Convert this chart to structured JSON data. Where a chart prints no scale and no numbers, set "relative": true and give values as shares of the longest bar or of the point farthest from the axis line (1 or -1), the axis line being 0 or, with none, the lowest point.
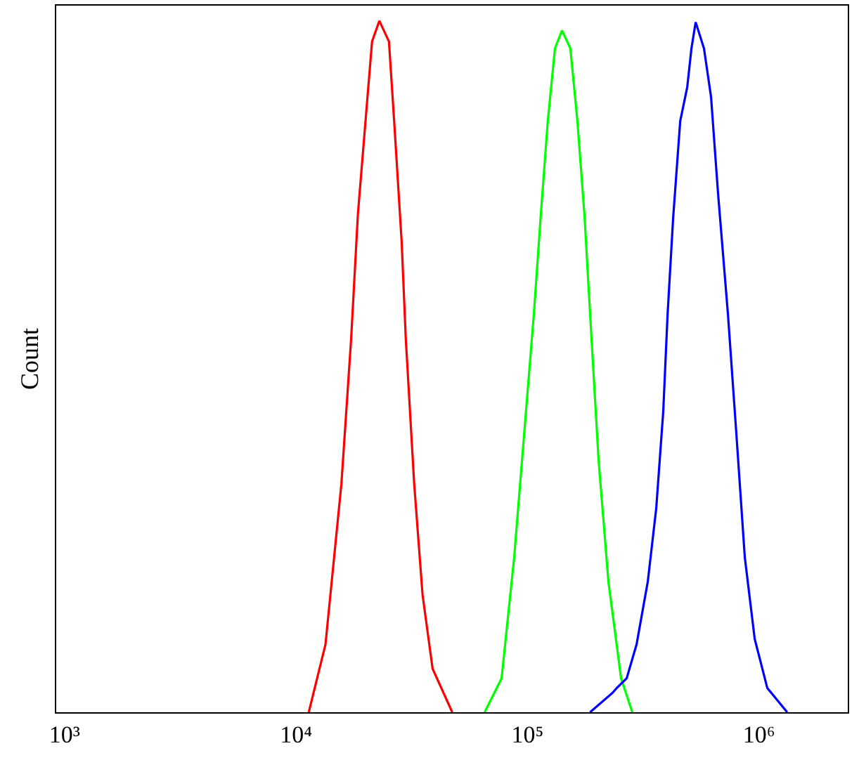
{
  "chart_data": {
    "type": "line",
    "ylabel": "Count",
    "relative": true,
    "tick_labels": "x",
    "marker": "none",
    "line_style": "solid",
    "xlim": [
      920,
      2420000
    ],
    "log": "x",
    "xticks": [
      {
        "value": 1000,
        "label": "10³"
      },
      {
        "value": 10000,
        "label": "10⁴"
      },
      {
        "value": 100000,
        "label": "10⁵"
      },
      {
        "value": 1000000,
        "label": "10⁶"
      }
    ],
    "series": [
      {
        "color": "#ff0000",
        "x": [
          11350,
          13400,
          15700,
          17300,
          18500,
          19900,
          21300,
          22900,
          25200,
          26600,
          28600,
          29800,
          32400,
          35200,
          38900,
          47300
        ],
        "values": [
          0,
          0.098,
          0.33,
          0.54,
          0.72,
          0.85,
          0.97,
          1.0,
          0.97,
          0.85,
          0.68,
          0.54,
          0.33,
          0.17,
          0.063,
          0
        ]
      },
      {
        "color": "#00ff00",
        "x": [
          65300,
          77300,
          87600,
          96600,
          106500,
          114200,
          122400,
          131400,
          141000,
          153200,
          164300,
          176200,
          189100,
          202800,
          223700,
          253700,
          283700
        ],
        "values": [
          0,
          0.049,
          0.224,
          0.4,
          0.575,
          0.72,
          0.855,
          0.96,
          0.986,
          0.96,
          0.855,
          0.72,
          0.54,
          0.365,
          0.189,
          0.049,
          0
        ]
      },
      {
        "color": "#0000ff",
        "x": [
          186400,
          233000,
          243000,
          268300,
          296000,
          331000,
          360000,
          386000,
          403000,
          426000,
          457000,
          490000,
          511000,
          533000,
          579000,
          621000,
          666000,
          735000,
          800000,
          869000,
          959000,
          1087000,
          1325000
        ],
        "values": [
          0,
          0.028,
          0.035,
          0.049,
          0.098,
          0.189,
          0.295,
          0.435,
          0.575,
          0.715,
          0.855,
          0.904,
          0.96,
          0.998,
          0.96,
          0.89,
          0.75,
          0.575,
          0.4,
          0.224,
          0.106,
          0.035,
          0
        ]
      }
    ]
  }
}
